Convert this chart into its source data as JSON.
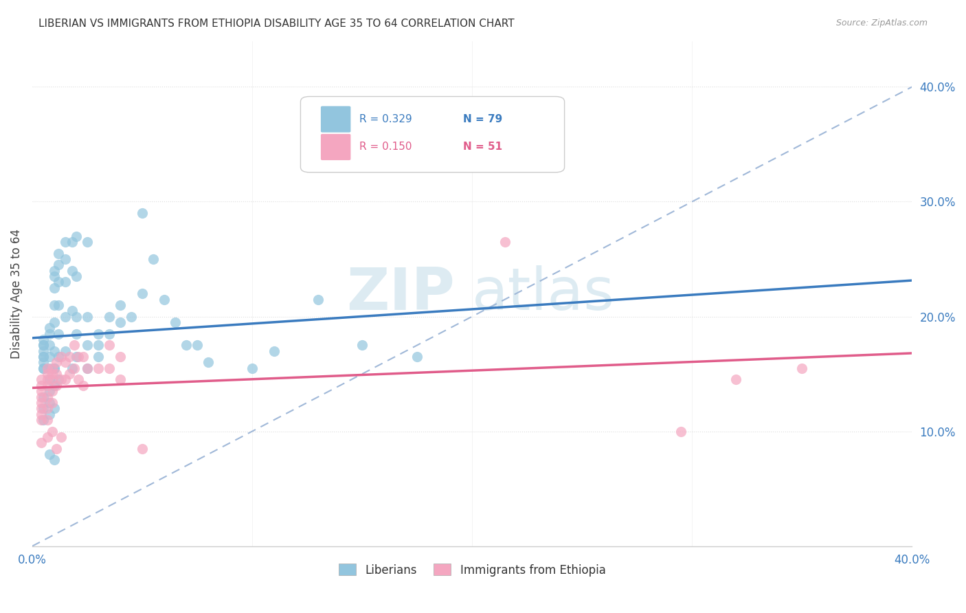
{
  "title": "LIBERIAN VS IMMIGRANTS FROM ETHIOPIA DISABILITY AGE 35 TO 64 CORRELATION CHART",
  "source": "Source: ZipAtlas.com",
  "ylabel": "Disability Age 35 to 64",
  "xlim": [
    0.0,
    0.4
  ],
  "ylim": [
    0.0,
    0.44
  ],
  "xtick_left_label": "0.0%",
  "xtick_right_label": "40.0%",
  "ytick_labels": [
    "10.0%",
    "20.0%",
    "30.0%",
    "40.0%"
  ],
  "ytick_vals": [
    0.1,
    0.2,
    0.3,
    0.4
  ],
  "legend_labels": [
    "Liberians",
    "Immigrants from Ethiopia"
  ],
  "blue_color": "#92c5de",
  "pink_color": "#f4a6c0",
  "blue_line_color": "#3a7bbf",
  "pink_line_color": "#e05c8a",
  "dashed_line_color": "#a0b8d8",
  "R_blue": 0.329,
  "N_blue": 79,
  "R_pink": 0.15,
  "N_pink": 51,
  "watermark_zip": "ZIP",
  "watermark_atlas": "atlas",
  "blue_x": [
    0.005,
    0.005,
    0.005,
    0.005,
    0.005,
    0.005,
    0.005,
    0.005,
    0.005,
    0.005,
    0.005,
    0.005,
    0.008,
    0.008,
    0.008,
    0.008,
    0.008,
    0.008,
    0.008,
    0.008,
    0.008,
    0.008,
    0.01,
    0.01,
    0.01,
    0.01,
    0.01,
    0.01,
    0.01,
    0.01,
    0.01,
    0.01,
    0.01,
    0.012,
    0.012,
    0.012,
    0.012,
    0.012,
    0.012,
    0.012,
    0.015,
    0.015,
    0.015,
    0.015,
    0.015,
    0.018,
    0.018,
    0.018,
    0.018,
    0.02,
    0.02,
    0.02,
    0.02,
    0.02,
    0.025,
    0.025,
    0.025,
    0.025,
    0.03,
    0.03,
    0.03,
    0.035,
    0.035,
    0.04,
    0.04,
    0.045,
    0.05,
    0.05,
    0.055,
    0.06,
    0.065,
    0.07,
    0.075,
    0.08,
    0.1,
    0.11,
    0.13,
    0.15,
    0.175
  ],
  "blue_y": [
    0.155,
    0.16,
    0.165,
    0.17,
    0.175,
    0.18,
    0.13,
    0.12,
    0.11,
    0.175,
    0.165,
    0.155,
    0.19,
    0.185,
    0.175,
    0.165,
    0.155,
    0.145,
    0.135,
    0.125,
    0.115,
    0.08,
    0.24,
    0.235,
    0.225,
    0.21,
    0.195,
    0.17,
    0.155,
    0.14,
    0.12,
    0.075,
    0.155,
    0.255,
    0.245,
    0.23,
    0.21,
    0.185,
    0.165,
    0.145,
    0.265,
    0.25,
    0.23,
    0.2,
    0.17,
    0.265,
    0.24,
    0.205,
    0.155,
    0.27,
    0.235,
    0.185,
    0.165,
    0.2,
    0.265,
    0.2,
    0.155,
    0.175,
    0.185,
    0.175,
    0.165,
    0.2,
    0.185,
    0.21,
    0.195,
    0.2,
    0.29,
    0.22,
    0.25,
    0.215,
    0.195,
    0.175,
    0.175,
    0.16,
    0.155,
    0.17,
    0.215,
    0.175,
    0.165
  ],
  "pink_x": [
    0.004,
    0.004,
    0.004,
    0.004,
    0.004,
    0.004,
    0.004,
    0.004,
    0.004,
    0.007,
    0.007,
    0.007,
    0.007,
    0.007,
    0.007,
    0.007,
    0.007,
    0.009,
    0.009,
    0.009,
    0.009,
    0.009,
    0.009,
    0.011,
    0.011,
    0.011,
    0.011,
    0.013,
    0.013,
    0.013,
    0.015,
    0.015,
    0.017,
    0.017,
    0.019,
    0.019,
    0.021,
    0.021,
    0.023,
    0.023,
    0.025,
    0.03,
    0.035,
    0.035,
    0.04,
    0.04,
    0.05,
    0.215,
    0.295,
    0.32,
    0.35
  ],
  "pink_y": [
    0.145,
    0.14,
    0.135,
    0.13,
    0.125,
    0.12,
    0.115,
    0.11,
    0.09,
    0.155,
    0.15,
    0.145,
    0.14,
    0.13,
    0.12,
    0.11,
    0.095,
    0.155,
    0.15,
    0.145,
    0.135,
    0.125,
    0.1,
    0.16,
    0.15,
    0.14,
    0.085,
    0.165,
    0.145,
    0.095,
    0.16,
    0.145,
    0.165,
    0.15,
    0.175,
    0.155,
    0.165,
    0.145,
    0.165,
    0.14,
    0.155,
    0.155,
    0.175,
    0.155,
    0.165,
    0.145,
    0.085,
    0.265,
    0.1,
    0.145,
    0.155
  ]
}
